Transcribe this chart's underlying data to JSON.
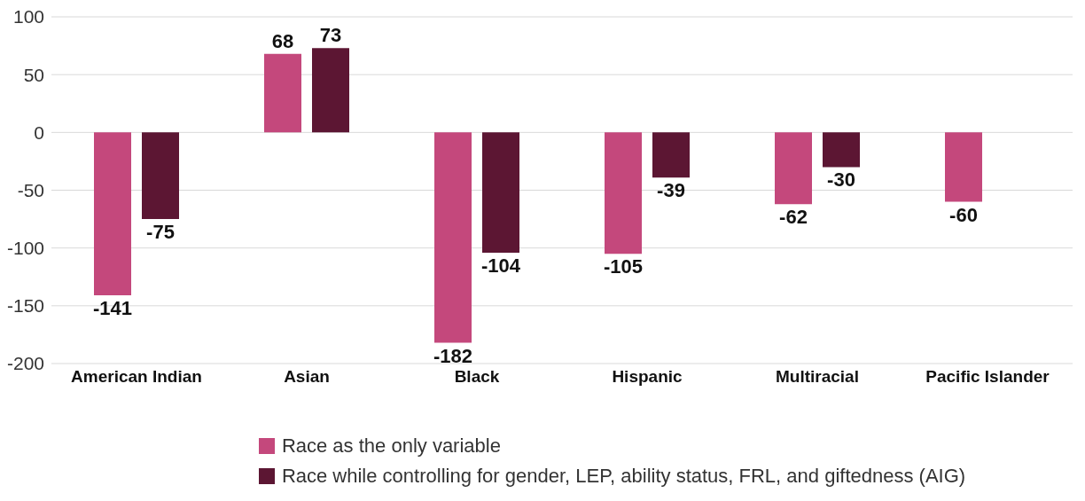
{
  "chart_data": {
    "type": "bar",
    "categories": [
      "American Indian",
      "Asian",
      "Black",
      "Hispanic",
      "Multiracial",
      "Pacific Islander"
    ],
    "series": [
      {
        "name": "Race as the only variable",
        "color": "#c4487c",
        "values": [
          -141,
          68,
          -182,
          -105,
          -62,
          -60
        ]
      },
      {
        "name": "Race while controlling for gender, LEP, ability status, FRL, and giftedness (AIG)",
        "color": "#5c1633",
        "values": [
          -75,
          73,
          -104,
          -39,
          -30,
          null
        ]
      }
    ],
    "ylim": [
      -200,
      100
    ],
    "yticks": [
      -200,
      -150,
      -100,
      -50,
      0,
      50,
      100
    ],
    "grid": "y",
    "legend": "bottom",
    "data_labels": true
  }
}
